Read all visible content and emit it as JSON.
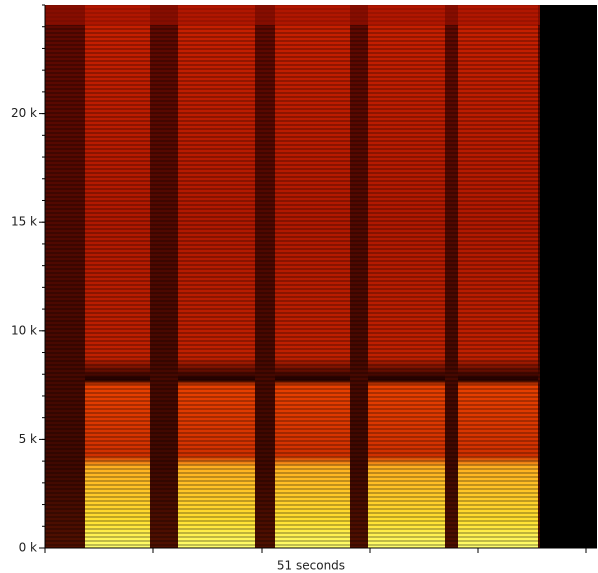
{
  "chart_data": {
    "type": "spectrogram",
    "xlabel": "51 seconds",
    "ylim": [
      0,
      25000
    ],
    "yticks": [
      {
        "value": 0,
        "label": "0 k"
      },
      {
        "value": 5000,
        "label": "5 k"
      },
      {
        "value": 10000,
        "label": "10 k"
      },
      {
        "value": 15000,
        "label": "15 k"
      },
      {
        "value": 20000,
        "label": "20 k"
      }
    ]
  }
}
